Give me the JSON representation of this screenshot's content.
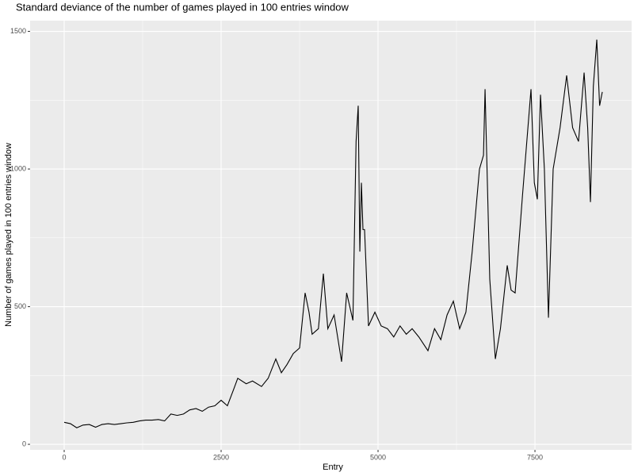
{
  "chart_data": {
    "type": "line",
    "title": "Standard deviance of the number of games played in 100 entries window",
    "x_label": "Entry",
    "y_label": "Number of games played in 100 entries window",
    "x": [
      0,
      100,
      200,
      300,
      400,
      500,
      600,
      700,
      800,
      900,
      1000,
      1100,
      1200,
      1300,
      1400,
      1500,
      1600,
      1700,
      1800,
      1900,
      2000,
      2100,
      2200,
      2300,
      2400,
      2500,
      2600,
      2700,
      2765,
      2900,
      3000,
      3144,
      3250,
      3371,
      3460,
      3550,
      3650,
      3750,
      3838,
      3900,
      3950,
      4050,
      4129,
      4200,
      4300,
      4419,
      4500,
      4600,
      4650,
      4684,
      4710,
      4735,
      4760,
      4785,
      4848,
      4950,
      5050,
      5150,
      5250,
      5350,
      5450,
      5543,
      5650,
      5795,
      5900,
      6000,
      6100,
      6200,
      6300,
      6400,
      6500,
      6616,
      6680,
      6705,
      6780,
      6869,
      6950,
      7058,
      7120,
      7184,
      7300,
      7437,
      7490,
      7538,
      7588,
      7650,
      7715,
      7790,
      7900,
      8005,
      8100,
      8194,
      8283,
      8340,
      8384,
      8430,
      8485,
      8530,
      8573
    ],
    "values": [
      80,
      75,
      60,
      70,
      72,
      62,
      72,
      75,
      72,
      75,
      78,
      80,
      85,
      88,
      88,
      90,
      85,
      110,
      105,
      110,
      125,
      130,
      120,
      135,
      140,
      160,
      140,
      200,
      240,
      220,
      230,
      210,
      240,
      310,
      260,
      290,
      330,
      350,
      550,
      480,
      400,
      420,
      620,
      420,
      470,
      300,
      550,
      450,
      1100,
      1230,
      700,
      950,
      780,
      780,
      430,
      480,
      430,
      420,
      390,
      430,
      400,
      420,
      390,
      340,
      420,
      380,
      470,
      520,
      420,
      480,
      700,
      1000,
      1050,
      1290,
      600,
      310,
      420,
      650,
      560,
      550,
      900,
      1290,
      950,
      890,
      1270,
      1000,
      460,
      1000,
      1150,
      1340,
      1150,
      1100,
      1350,
      1150,
      880,
      1300,
      1470,
      1230,
      1280
    ],
    "color": "#000000",
    "xlim": [
      -543,
      9040
    ],
    "ylim": [
      -20,
      1539
    ],
    "xticks": [
      0,
      2500,
      5000,
      7500
    ],
    "yticks": [
      0,
      500,
      1000,
      1500
    ],
    "grid": true
  }
}
